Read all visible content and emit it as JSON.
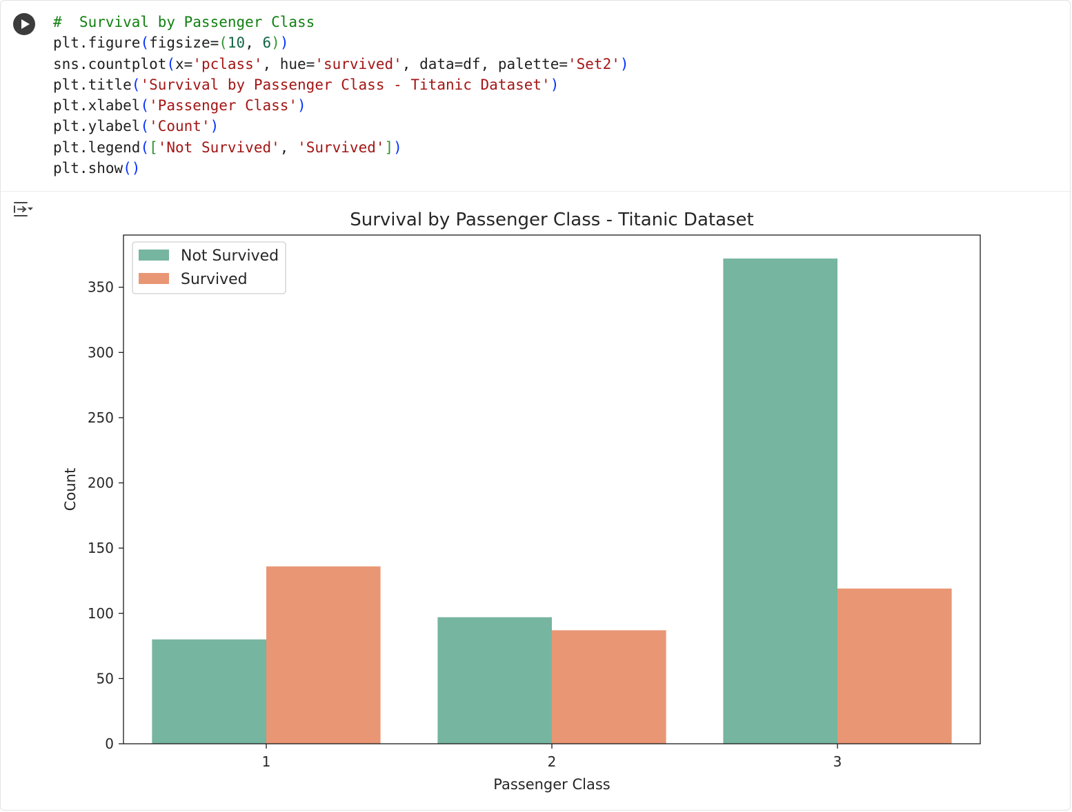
{
  "code_cell": {
    "lines": [
      [
        {
          "t": "#  Survival by Passenger Class",
          "c": "comment"
        }
      ],
      [
        {
          "t": "plt.figure"
        },
        {
          "t": "(",
          "c": "paren"
        },
        {
          "t": "figsize="
        },
        {
          "t": "(",
          "c": "paren2"
        },
        {
          "t": "10",
          "c": "number"
        },
        {
          "t": ", "
        },
        {
          "t": "6",
          "c": "number"
        },
        {
          "t": ")",
          "c": "paren2"
        },
        {
          "t": ")",
          "c": "paren"
        }
      ],
      [
        {
          "t": "sns.countplot"
        },
        {
          "t": "(",
          "c": "paren"
        },
        {
          "t": "x="
        },
        {
          "t": "'pclass'",
          "c": "string"
        },
        {
          "t": ", hue="
        },
        {
          "t": "'survived'",
          "c": "string"
        },
        {
          "t": ", data=df, palette="
        },
        {
          "t": "'Set2'",
          "c": "string"
        },
        {
          "t": ")",
          "c": "paren"
        }
      ],
      [
        {
          "t": "plt.title"
        },
        {
          "t": "(",
          "c": "paren"
        },
        {
          "t": "'Survival by Passenger Class - Titanic Dataset'",
          "c": "string"
        },
        {
          "t": ")",
          "c": "paren"
        }
      ],
      [
        {
          "t": "plt.xlabel"
        },
        {
          "t": "(",
          "c": "paren"
        },
        {
          "t": "'Passenger Class'",
          "c": "string"
        },
        {
          "t": ")",
          "c": "paren"
        }
      ],
      [
        {
          "t": "plt.ylabel"
        },
        {
          "t": "(",
          "c": "paren"
        },
        {
          "t": "'Count'",
          "c": "string"
        },
        {
          "t": ")",
          "c": "paren"
        }
      ],
      [
        {
          "t": "plt.legend"
        },
        {
          "t": "(",
          "c": "paren"
        },
        {
          "t": "[",
          "c": "paren2"
        },
        {
          "t": "'Not Survived'",
          "c": "string"
        },
        {
          "t": ", "
        },
        {
          "t": "'Survived'",
          "c": "string"
        },
        {
          "t": "]",
          "c": "paren2"
        },
        {
          "t": ")",
          "c": "paren"
        }
      ],
      [
        {
          "t": "plt.show"
        },
        {
          "t": "()",
          "c": "paren"
        }
      ]
    ]
  },
  "icons": {
    "run": "play-icon",
    "output": "output-toggle-icon"
  },
  "colors": {
    "not_survived": "#76b5a0",
    "survived": "#e99675",
    "comment": "#118011",
    "string": "#a31515"
  },
  "chart_data": {
    "type": "bar",
    "title": "Survival by Passenger Class - Titanic Dataset",
    "xlabel": "Passenger Class",
    "ylabel": "Count",
    "categories": [
      "1",
      "2",
      "3"
    ],
    "series": [
      {
        "name": "Not Survived",
        "values": [
          80,
          97,
          372
        ]
      },
      {
        "name": "Survived",
        "values": [
          136,
          87,
          119
        ]
      }
    ],
    "ylim": [
      0,
      390
    ],
    "yticks": [
      0,
      50,
      100,
      150,
      200,
      250,
      300,
      350
    ],
    "legend": "upper-left",
    "grid": false
  }
}
